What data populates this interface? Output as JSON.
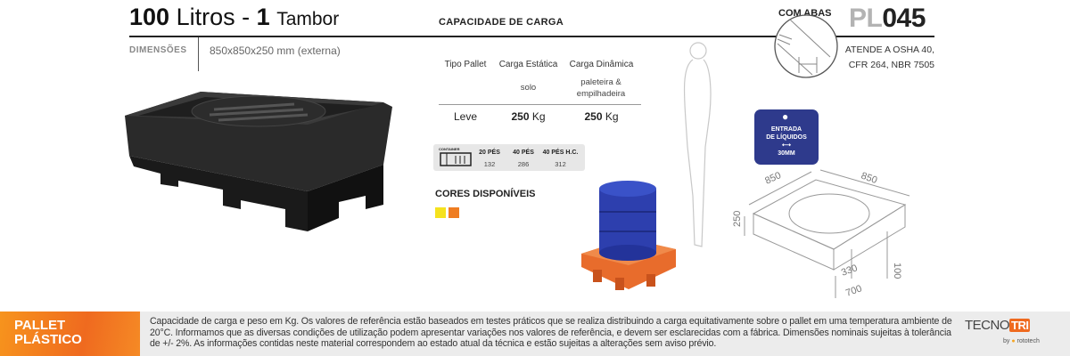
{
  "header": {
    "title_num": "100",
    "title_unit": "Litros",
    "title_sep": "-",
    "title_count": "1",
    "title_item": "Tambor",
    "dim_label": "DIMENSÕES",
    "dim_value": "850x850x250 mm (externa)"
  },
  "capacity": {
    "heading": "CAPACIDADE DE CARGA",
    "columns": [
      "Tipo Pallet",
      "Carga Estática",
      "Carga Dinâmica"
    ],
    "subs": [
      "",
      "solo",
      "paleteira & empilhadeira"
    ],
    "rows": [
      {
        "type": "Leve",
        "static_num": "250",
        "static_unit": "Kg",
        "dynamic_num": "250",
        "dynamic_unit": "Kg"
      }
    ]
  },
  "container": {
    "label": "CONTAINER",
    "headers": [
      "20 PÉS",
      "40 PÉS",
      "40 PÉS H.C."
    ],
    "values": [
      "132",
      "286",
      "312"
    ]
  },
  "colors": {
    "heading": "CORES DISPONÍVEIS",
    "swatches": [
      "#f5e21e",
      "#ef7d22"
    ]
  },
  "product": {
    "feature": "COM ABAS",
    "code_prefix": "PL",
    "code_num": "045",
    "code_prefix_color": "#b3b3b3",
    "standards_line1": "ATENDE A OSHA 40,",
    "standards_line2": "CFR 264, NBR 7505"
  },
  "badge": {
    "line1": "ENTRADA",
    "line2": "DE LÍQUIDOS",
    "size": "30MM",
    "color": "#2e3a8c"
  },
  "diagram": {
    "width": "850",
    "depth": "850",
    "height": "250",
    "foot": "100",
    "gap": "330",
    "span": "700"
  },
  "footer": {
    "title1": "PALLET",
    "title2": "PLÁSTICO",
    "text": "Capacidade de carga e peso em Kg. Os valores de referência estão baseados em testes práticos que se realiza distribuindo a carga equitativamente sobre o pallet em uma temperatura ambiente de 20°C. Informamos que as diversas condições de utilização podem apresentar variações nos valores de referência, e devem ser esclarecidas com a fábrica. Dimensões nominais sujeitas à tolerância de +/- 2%. As informações contidas neste material correspondem ao estado atual da técnica e estão sujeitas a alterações sem aviso prévio.",
    "brand_a": "TECNO",
    "brand_b": "TRI",
    "by": "by",
    "partner": "rototech"
  }
}
